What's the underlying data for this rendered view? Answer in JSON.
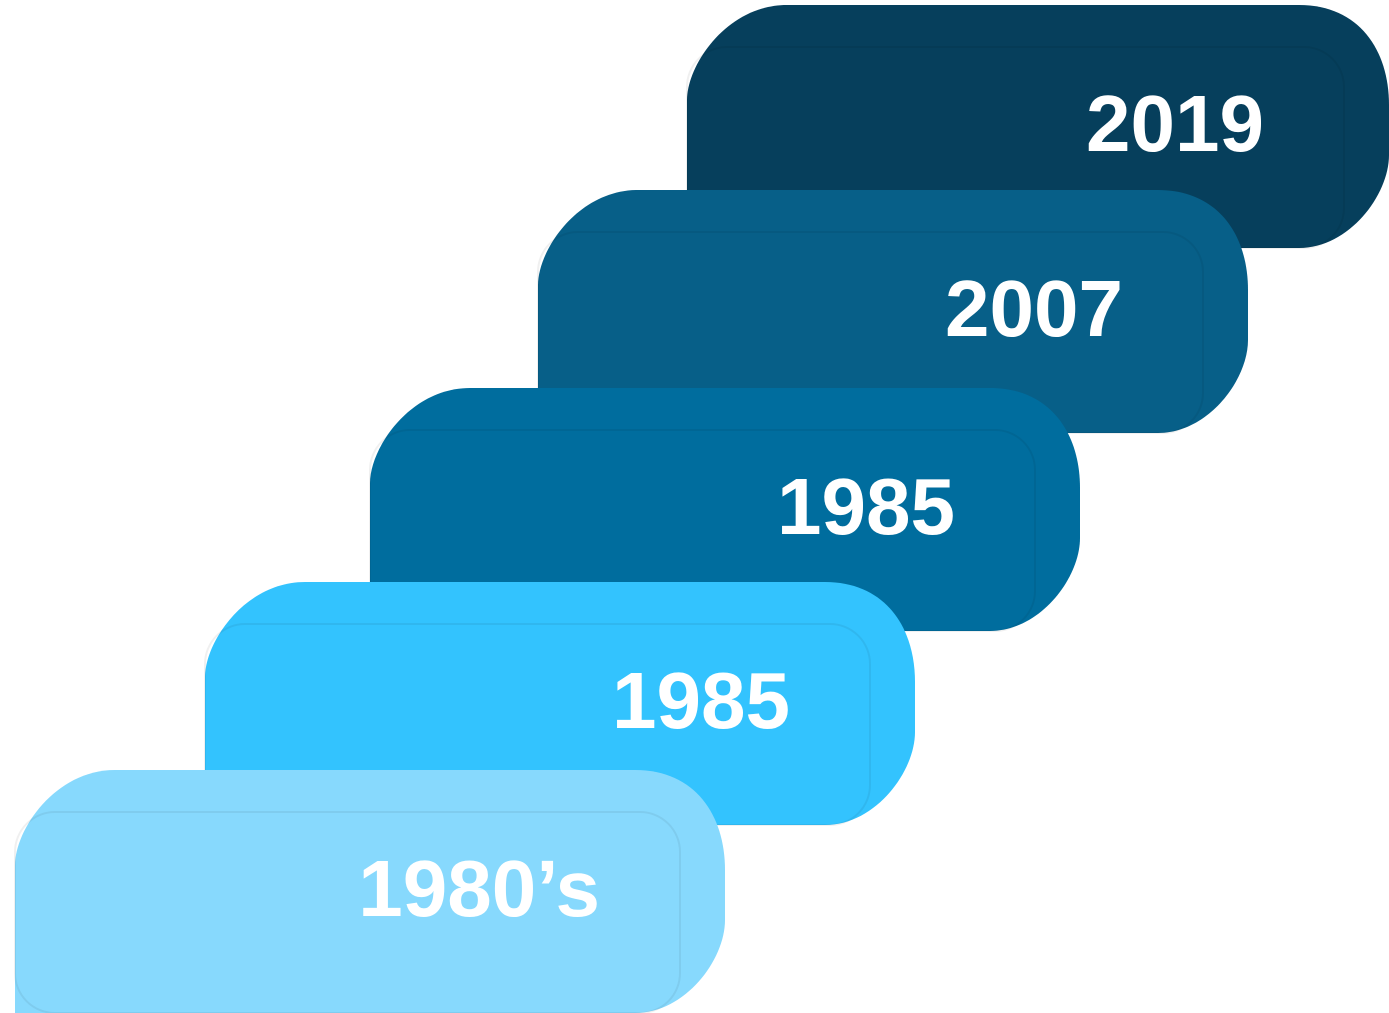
{
  "steps": [
    {
      "label": "1980’s",
      "color": "#87d9fd"
    },
    {
      "label": "1985",
      "color": "#33c3fe"
    },
    {
      "label": "1985",
      "color": "#006d9e"
    },
    {
      "label": "2007",
      "color": "#075f88"
    },
    {
      "label": "2019",
      "color": "#063f5c"
    }
  ]
}
